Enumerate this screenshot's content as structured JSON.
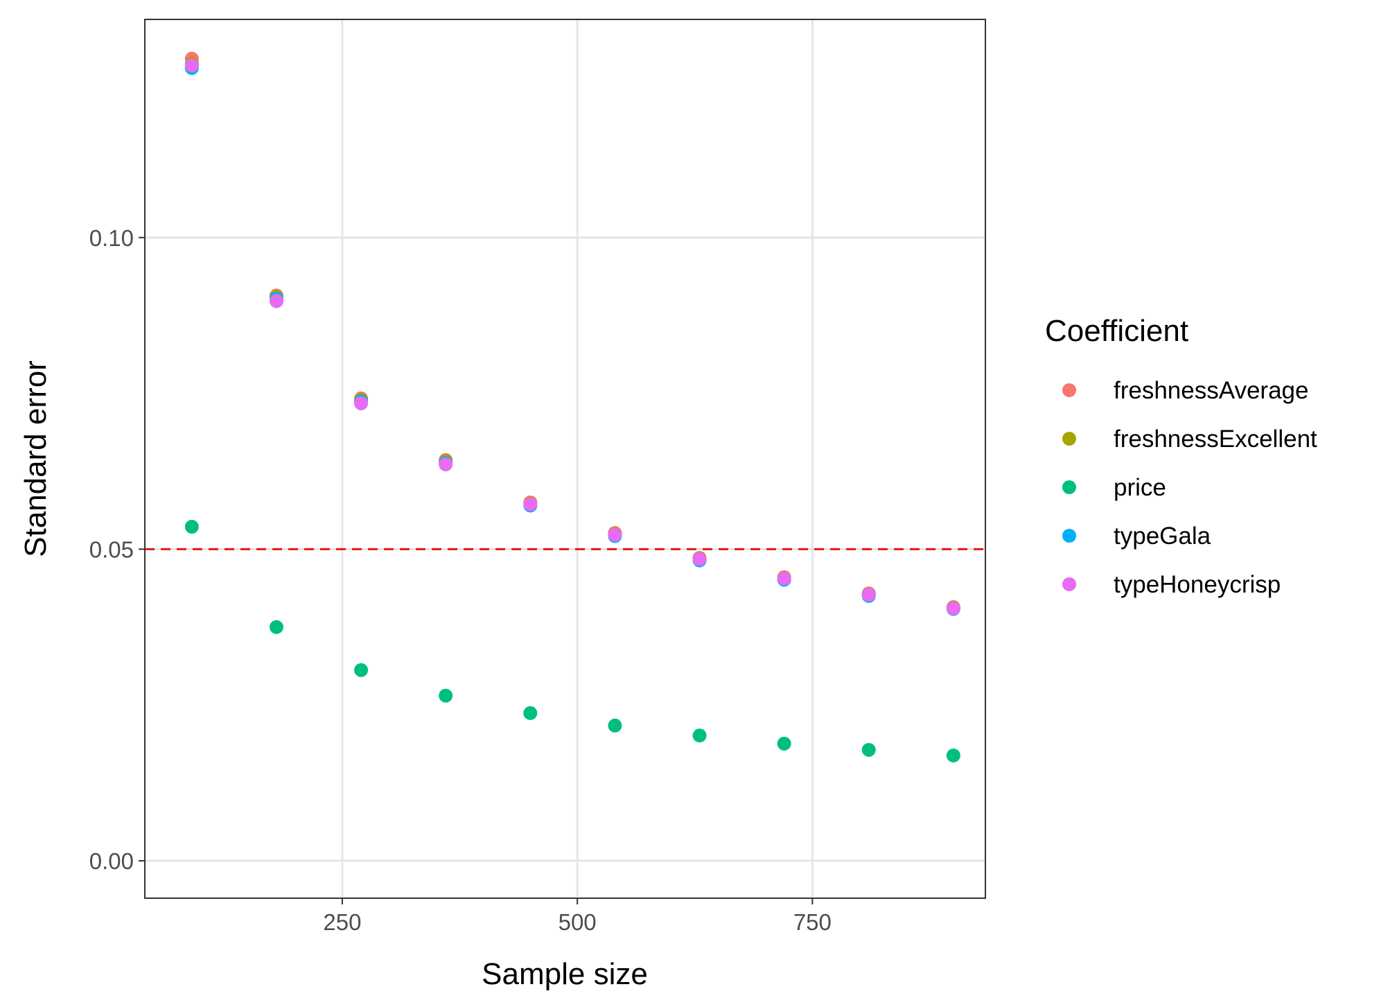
{
  "chart_data": {
    "type": "scatter",
    "title": "",
    "xlabel": "Sample size",
    "ylabel": "Standard error",
    "xlim": [
      40,
      934
    ],
    "ylim": [
      -0.006,
      0.135
    ],
    "xticks": [
      250,
      500,
      750
    ],
    "xtick_labels": [
      "250",
      "500",
      "750"
    ],
    "yticks": [
      0.0,
      0.05,
      0.1
    ],
    "ytick_labels": [
      "0.00",
      "0.05",
      "0.10"
    ],
    "grid": true,
    "reference_line": {
      "y": 0.05,
      "color": "#e41a1c",
      "style": "dashed"
    },
    "legend": {
      "title": "Coefficient",
      "position": "right"
    },
    "x": [
      90,
      180,
      270,
      360,
      450,
      540,
      630,
      720,
      810,
      900
    ],
    "series": [
      {
        "name": "freshnessAverage",
        "color": "#F8766D",
        "values": [
          0.1287,
          0.0907,
          0.0742,
          0.0643,
          0.0575,
          0.0526,
          0.0486,
          0.0455,
          0.0429,
          0.0407
        ]
      },
      {
        "name": "freshnessExcellent",
        "color": "#A3A500",
        "values": [
          0.1279,
          0.0905,
          0.074,
          0.0641,
          0.0573,
          0.0524,
          0.0485,
          0.0454,
          0.0428,
          0.0406
        ]
      },
      {
        "name": "price",
        "color": "#00BF7D",
        "values": [
          0.0536,
          0.0375,
          0.0306,
          0.0265,
          0.0237,
          0.0217,
          0.0201,
          0.0188,
          0.0178,
          0.0169
        ]
      },
      {
        "name": "typeGala",
        "color": "#00B0F6",
        "values": [
          0.1272,
          0.0902,
          0.0737,
          0.0638,
          0.057,
          0.0521,
          0.0482,
          0.0451,
          0.0425,
          0.0404
        ]
      },
      {
        "name": "typeHoneycrisp",
        "color": "#E76BF3",
        "values": [
          0.1276,
          0.0898,
          0.0734,
          0.0636,
          0.0572,
          0.0523,
          0.0484,
          0.0453,
          0.0427,
          0.0405
        ]
      }
    ]
  }
}
